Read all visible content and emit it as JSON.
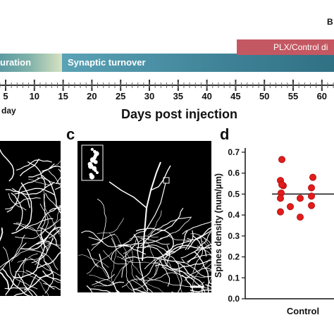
{
  "timeline": {
    "phases": {
      "maturation": "uration",
      "turnover": "Synaptic turnover",
      "treatment": "PLX/Control di"
    },
    "top_right_label": "B",
    "day_unit": "day",
    "ticks": [
      "5",
      "10",
      "15",
      "20",
      "25",
      "30",
      "35",
      "40",
      "45",
      "50",
      "55",
      "60"
    ],
    "axis_label": "Days post injection"
  },
  "panels": {
    "c": {
      "letter": "c"
    },
    "d": {
      "letter": "d"
    }
  },
  "chart_data": {
    "type": "scatter",
    "ylabel": "Spines density (num/µm)",
    "ylim": [
      0,
      0.7
    ],
    "yticks": [
      "0.0",
      "0.1",
      "0.2",
      "0.3",
      "0.4",
      "0.5",
      "0.6",
      "0.7"
    ],
    "categories": [
      "Control"
    ],
    "points": [
      0.665,
      0.565,
      0.54,
      0.545,
      0.505,
      0.48,
      0.48,
      0.44,
      0.415,
      0.39,
      0.445,
      0.49,
      0.53,
      0.58
    ],
    "mean": 0.5,
    "point_color": "#e31b1b"
  }
}
